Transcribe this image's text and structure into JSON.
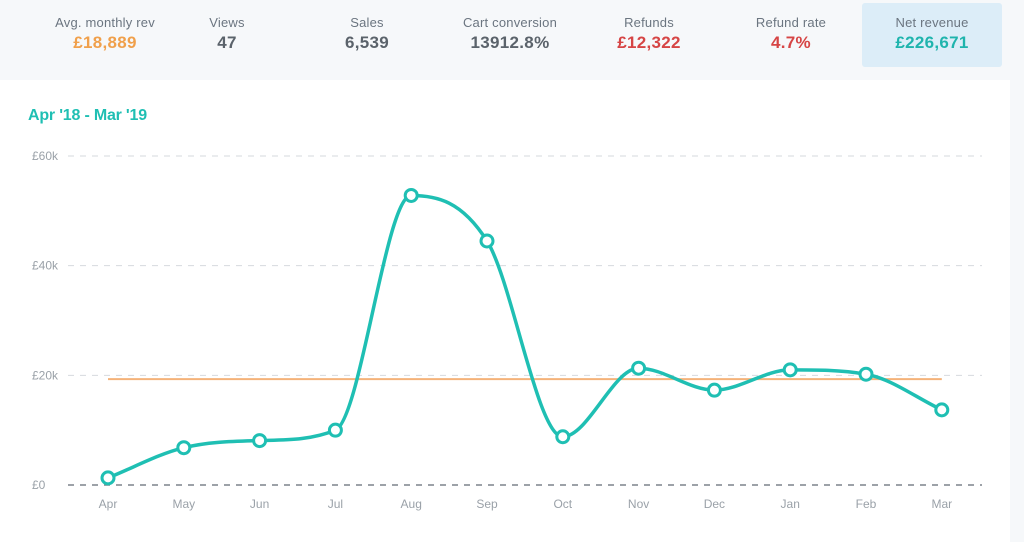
{
  "stats": [
    {
      "label": "Avg. monthly rev",
      "value": "£18,889",
      "color": "#f0a04b"
    },
    {
      "label": "Views",
      "value": "47",
      "color": "#5b636b"
    },
    {
      "label": "Sales",
      "value": "6,539",
      "color": "#5b636b"
    },
    {
      "label": "Cart conversion",
      "value": "13912.8%",
      "color": "#5b636b"
    },
    {
      "label": "Refunds",
      "value": "£12,322",
      "color": "#d64545"
    },
    {
      "label": "Refund rate",
      "value": "4.7%",
      "color": "#d64545"
    },
    {
      "label": "Net revenue",
      "value": "£226,671",
      "color": "#1fb4ad"
    }
  ],
  "chart": {
    "title": "Apr '18 - Mar '19"
  },
  "chart_data": {
    "type": "line",
    "categories": [
      "Apr",
      "May",
      "Jun",
      "Jul",
      "Aug",
      "Sep",
      "Oct",
      "Nov",
      "Dec",
      "Jan",
      "Feb",
      "Mar"
    ],
    "series": [
      {
        "values": [
          1300,
          6800,
          8100,
          10000,
          52800,
          44500,
          8800,
          21300,
          17300,
          21000,
          20200,
          13700
        ],
        "color": "#1fbfb3"
      }
    ],
    "reference_line": {
      "value": 19300,
      "color": "#f4b27a"
    },
    "yticks": [
      "£0",
      "£20k",
      "£40k",
      "£60k"
    ],
    "ytick_values": [
      0,
      20000,
      40000,
      60000
    ],
    "ylim": [
      0,
      60000
    ],
    "grid": true
  }
}
